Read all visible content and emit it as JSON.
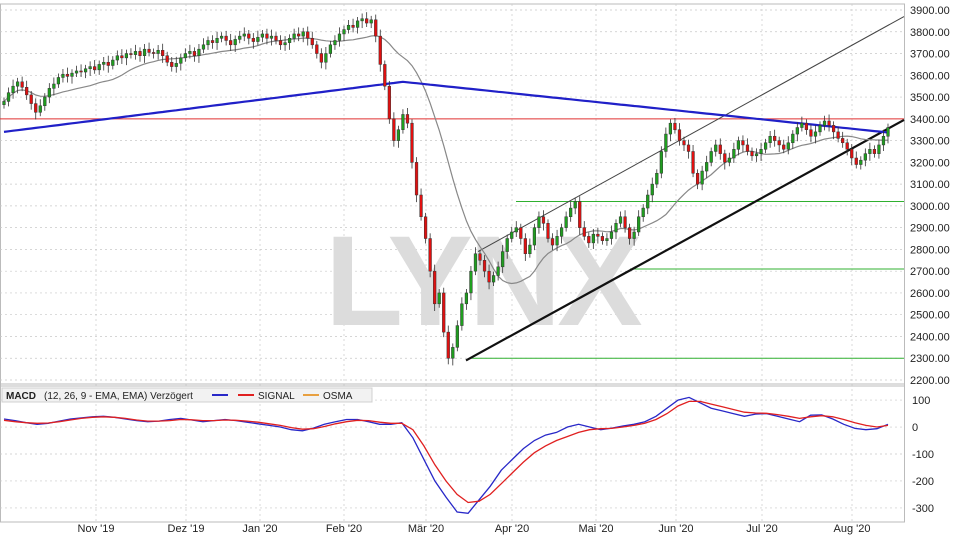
{
  "watermark": "LYNX",
  "macd_legend": {
    "label": "MACD",
    "params": "(12, 26, 9 - EMA, EMA) Verzögert",
    "signal": "SIGNAL",
    "osma": "OSMA"
  },
  "colors": {
    "grid": "#c8c8c8",
    "up": "#1f9e1f",
    "down": "#e01010",
    "ma_long": "#2020c8",
    "ma_short": "#888888",
    "resistance": "#e03030",
    "support_lines": "#30b030",
    "trend": "#111111",
    "macd": "#2828c8",
    "signal": "#e02020",
    "osma": "#e8a040"
  },
  "chart_data": [
    {
      "type": "candlestick",
      "title": "",
      "ylim": [
        2200,
        3900
      ],
      "y_ticks": [
        2200,
        2300,
        2400,
        2500,
        2600,
        2700,
        2800,
        2900,
        3000,
        3100,
        3200,
        3300,
        3400,
        3500,
        3600,
        3700,
        3800,
        3900
      ],
      "y_tick_labels": [
        "2200.00",
        "2300.00",
        "2400.00",
        "2500.00",
        "2600.00",
        "2700.00",
        "2800.00",
        "2900.00",
        "3000.00",
        "3100.00",
        "3200.00",
        "3300.00",
        "3400.00",
        "3500.00",
        "3600.00",
        "3700.00",
        "3800.00",
        "3900.00"
      ],
      "x_tick_labels": [
        "Nov '19",
        "Dez '19",
        "Jan '20",
        "Feb '20",
        "Mär '20",
        "Apr '20",
        "Mai '20",
        "Jun '20",
        "Jul '20",
        "Aug '20"
      ],
      "grid": true,
      "closes": [
        3480,
        3520,
        3550,
        3570,
        3545,
        3510,
        3470,
        3430,
        3460,
        3500,
        3540,
        3560,
        3590,
        3605,
        3595,
        3610,
        3620,
        3615,
        3630,
        3640,
        3625,
        3650,
        3660,
        3645,
        3670,
        3690,
        3680,
        3700,
        3695,
        3710,
        3690,
        3720,
        3705,
        3700,
        3715,
        3690,
        3660,
        3640,
        3655,
        3680,
        3700,
        3710,
        3690,
        3720,
        3740,
        3760,
        3750,
        3770,
        3780,
        3760,
        3740,
        3765,
        3780,
        3790,
        3770,
        3755,
        3775,
        3790,
        3770,
        3780,
        3760,
        3740,
        3750,
        3770,
        3790,
        3780,
        3800,
        3770,
        3740,
        3700,
        3660,
        3700,
        3740,
        3760,
        3790,
        3810,
        3830,
        3820,
        3850,
        3860,
        3840,
        3855,
        3780,
        3650,
        3550,
        3400,
        3300,
        3350,
        3420,
        3380,
        3200,
        3050,
        2950,
        2850,
        2700,
        2550,
        2600,
        2420,
        2300,
        2350,
        2450,
        2550,
        2600,
        2700,
        2780,
        2750,
        2700,
        2650,
        2680,
        2720,
        2790,
        2850,
        2880,
        2900,
        2850,
        2780,
        2820,
        2900,
        2950,
        2920,
        2850,
        2820,
        2860,
        2900,
        2950,
        2990,
        3020,
        2900,
        2860,
        2830,
        2870,
        2860,
        2840,
        2850,
        2880,
        2920,
        2950,
        2900,
        2850,
        2880,
        2950,
        2990,
        3050,
        3100,
        3150,
        3250,
        3330,
        3380,
        3350,
        3300,
        3280,
        3250,
        3150,
        3100,
        3160,
        3200,
        3250,
        3280,
        3240,
        3200,
        3220,
        3260,
        3300,
        3280,
        3250,
        3230,
        3240,
        3260,
        3290,
        3320,
        3300,
        3280,
        3260,
        3290,
        3330,
        3360,
        3380,
        3350,
        3320,
        3340,
        3370,
        3390,
        3370,
        3340,
        3310,
        3290,
        3260,
        3220,
        3190,
        3210,
        3240,
        3260,
        3240,
        3280,
        3320,
        3360
      ]
    },
    {
      "type": "line",
      "title": "",
      "ylim": [
        -330,
        130
      ],
      "y_ticks": [
        -300,
        -200,
        -100,
        0,
        100
      ],
      "y_tick_labels": [
        "-300",
        "-200",
        "-100",
        "0",
        "100"
      ],
      "series": [
        {
          "name": "MACD",
          "values": [
            30,
            24,
            16,
            10,
            14,
            22,
            30,
            34,
            38,
            40,
            36,
            30,
            24,
            20,
            22,
            28,
            32,
            26,
            20,
            24,
            28,
            24,
            18,
            12,
            6,
            0,
            -10,
            -14,
            -4,
            10,
            20,
            28,
            28,
            20,
            10,
            10,
            16,
            -40,
            -120,
            -200,
            -260,
            -315,
            -320,
            -270,
            -220,
            -160,
            -120,
            -80,
            -50,
            -30,
            -20,
            0,
            10,
            0,
            -10,
            -4,
            4,
            10,
            20,
            40,
            70,
            100,
            110,
            90,
            70,
            60,
            50,
            40,
            48,
            50,
            40,
            30,
            20,
            44,
            45,
            30,
            10,
            -5,
            -10,
            -6,
            10
          ]
        },
        {
          "name": "SIGNAL",
          "values": [
            25,
            20,
            16,
            14,
            15,
            20,
            26,
            32,
            36,
            38,
            36,
            32,
            26,
            22,
            22,
            24,
            28,
            27,
            24,
            24,
            26,
            25,
            22,
            18,
            12,
            6,
            -2,
            -8,
            -6,
            2,
            12,
            20,
            25,
            24,
            18,
            14,
            14,
            -10,
            -70,
            -140,
            -200,
            -250,
            -280,
            -275,
            -250,
            -210,
            -170,
            -130,
            -95,
            -70,
            -50,
            -35,
            -20,
            -10,
            -6,
            -5,
            0,
            6,
            14,
            28,
            50,
            78,
            95,
            95,
            85,
            75,
            65,
            55,
            52,
            51,
            46,
            40,
            32,
            38,
            42,
            38,
            28,
            16,
            6,
            0,
            6
          ]
        }
      ]
    }
  ]
}
